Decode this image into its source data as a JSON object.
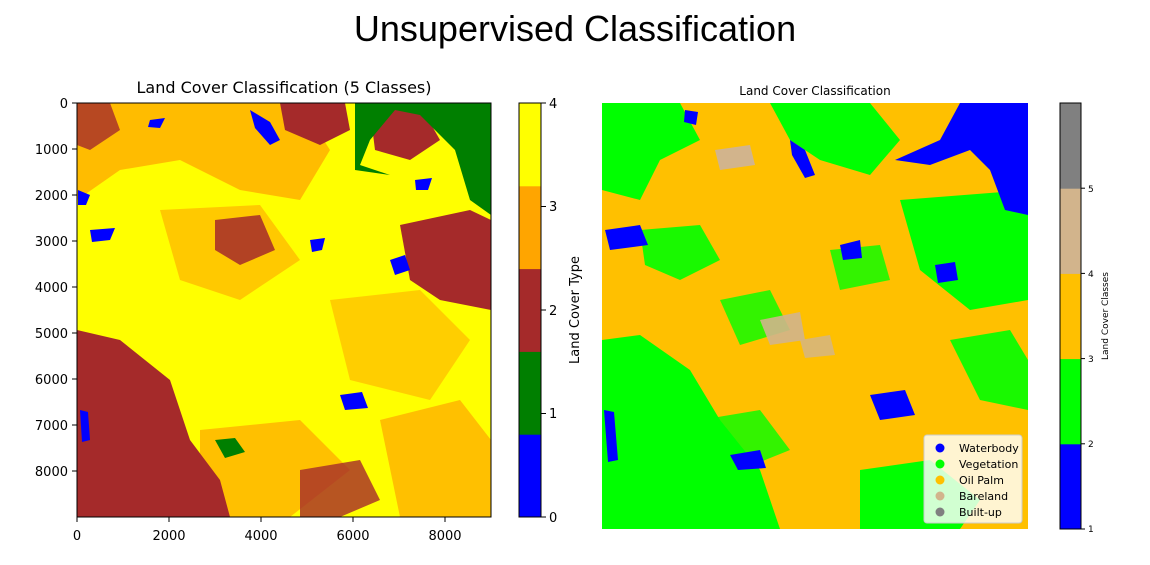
{
  "page_title": "Unsupervised Classification",
  "chart_data": [
    {
      "type": "heatmap",
      "title": "Land Cover Classification (5 Classes)",
      "xlabel": "",
      "ylabel": "",
      "xlim": [
        0,
        9000
      ],
      "ylim": [
        9000,
        0
      ],
      "x_ticks": [
        "0",
        "2000",
        "4000",
        "6000",
        "8000"
      ],
      "y_ticks": [
        "0",
        "1000",
        "2000",
        "3000",
        "4000",
        "5000",
        "6000",
        "7000",
        "8000"
      ],
      "colorbar": {
        "label": "Land Cover Type",
        "ticks": [
          "0",
          "1",
          "2",
          "3",
          "4"
        ],
        "colors": [
          "#0000ff",
          "#007f00",
          "#a52a2a",
          "#ffa500",
          "#ffff00"
        ]
      }
    },
    {
      "type": "heatmap",
      "title": "Land Cover Classification",
      "colorbar": {
        "label": "Land Cover Classes",
        "ticks": [
          "1",
          "2",
          "3",
          "4",
          "5"
        ],
        "colors": [
          "#0000ff",
          "#00ff00",
          "#ffc000",
          "#d2b48c",
          "#808080"
        ]
      },
      "legend": {
        "position": "lower-right",
        "entries": [
          {
            "label": "Waterbody",
            "color": "#0000ff"
          },
          {
            "label": "Vegetation",
            "color": "#00ff00"
          },
          {
            "label": "Oil Palm",
            "color": "#ffc000"
          },
          {
            "label": "Bareland",
            "color": "#d2b48c"
          },
          {
            "label": "Built-up",
            "color": "#808080"
          }
        ]
      }
    }
  ]
}
